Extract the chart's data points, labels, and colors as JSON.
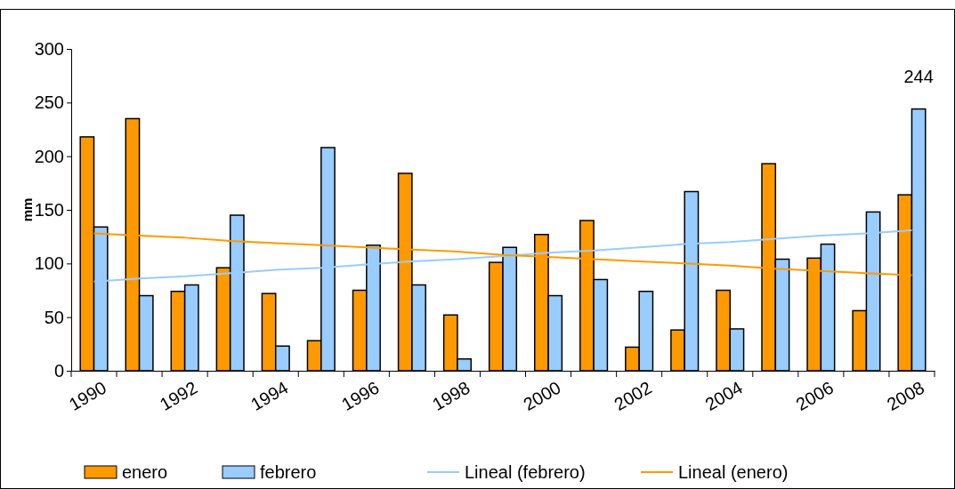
{
  "chart_data": {
    "type": "bar",
    "ylabel": "mm",
    "categories": [
      "1990",
      null,
      "1992",
      null,
      "1994",
      null,
      "1996",
      null,
      "1998",
      null,
      "2000",
      null,
      "2002",
      null,
      "2004",
      null,
      "2006",
      null,
      "2008"
    ],
    "series": [
      {
        "name": "enero",
        "color": "#ff9900",
        "values": [
          218,
          235,
          74,
          96,
          72,
          28,
          75,
          184,
          52,
          101,
          127,
          140,
          22,
          38,
          75,
          193,
          105,
          56,
          164
        ]
      },
      {
        "name": "febrero",
        "color": "#99ccff",
        "values": [
          134,
          70,
          80,
          145,
          23,
          208,
          117,
          80,
          11,
          115,
          70,
          85,
          74,
          167,
          39,
          104,
          118,
          148,
          244
        ],
        "value_labels": [
          null,
          null,
          null,
          null,
          null,
          null,
          null,
          null,
          null,
          null,
          null,
          null,
          null,
          null,
          null,
          null,
          null,
          null,
          "244"
        ]
      },
      {
        "name": "Lineal (febrero)",
        "type": "line",
        "color": "#99ccff",
        "values": [
          83,
          86,
          88,
          91,
          94,
          96,
          99,
          102,
          104,
          107,
          110,
          112,
          115,
          118,
          120,
          123,
          126,
          128,
          131
        ]
      },
      {
        "name": "Lineal (enero)",
        "type": "line",
        "color": "#ff9900",
        "values": [
          128,
          126,
          124,
          121,
          119,
          117,
          115,
          113,
          111,
          108,
          106,
          104,
          102,
          100,
          98,
          95,
          93,
          91,
          89
        ]
      }
    ],
    "ylim": [
      0,
      300
    ],
    "yticks": [
      0,
      50,
      100,
      150,
      200,
      250,
      300
    ],
    "grid": false,
    "legend": "bottom"
  }
}
